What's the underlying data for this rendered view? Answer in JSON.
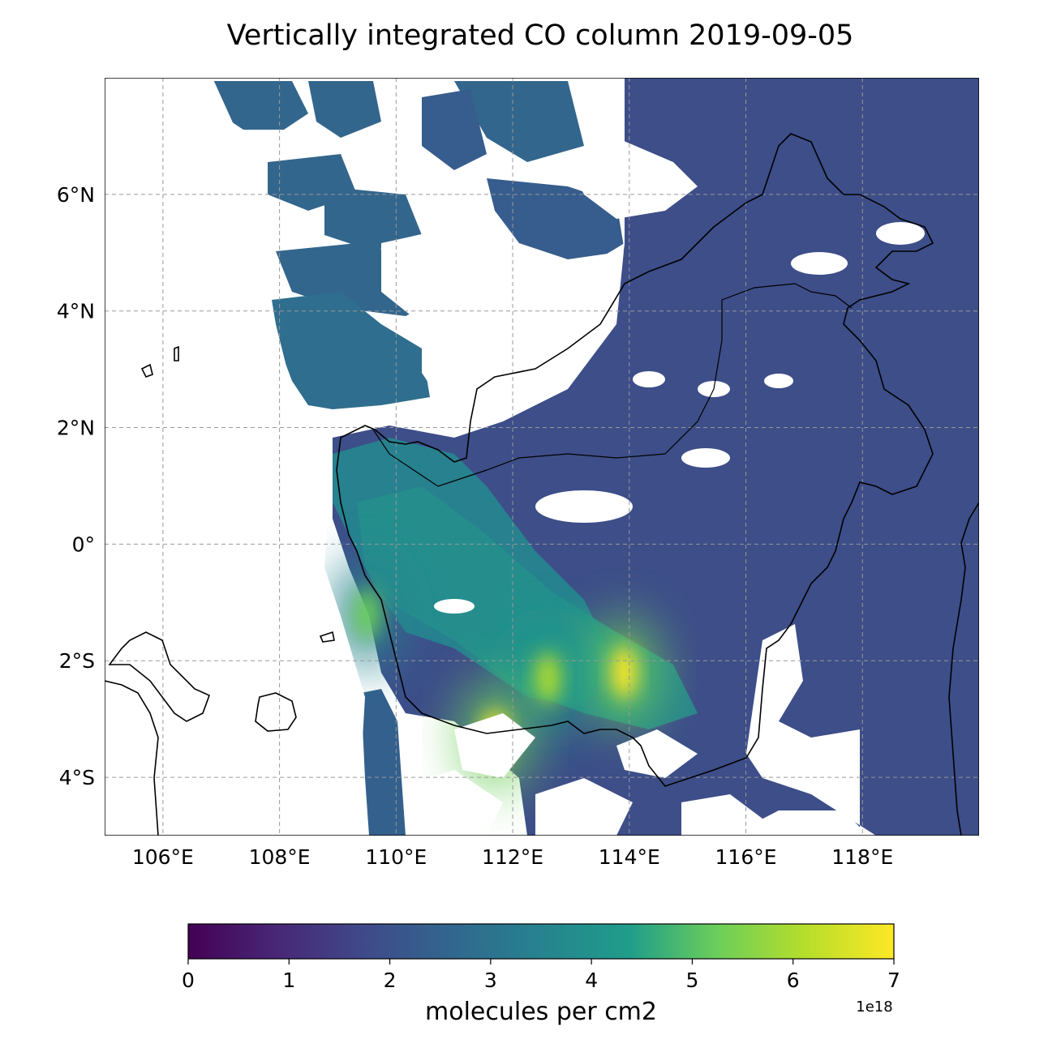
{
  "title": "Vertically integrated CO column 2019-09-05",
  "map": {
    "lon_range": [
      105,
      120
    ],
    "lat_range": [
      -5,
      8
    ],
    "lon_ticks": [
      106,
      108,
      110,
      112,
      114,
      116,
      118
    ],
    "lat_ticks": [
      6,
      4,
      2,
      0,
      -2,
      -4
    ],
    "lon_tick_labels": [
      "106°E",
      "108°E",
      "110°E",
      "112°E",
      "114°E",
      "116°E",
      "118°E"
    ],
    "lat_tick_labels": [
      "6°N",
      "4°N",
      "2°N",
      "0°",
      "2°S",
      "4°S"
    ],
    "gridlines": true,
    "coastline_color": "#000000",
    "hotspots": [
      {
        "lon": 113.9,
        "lat": -2.2,
        "value": 6.8
      },
      {
        "lon": 112.6,
        "lat": -2.3,
        "value": 6.3
      },
      {
        "lon": 111.7,
        "lat": -3.3,
        "value": 6.6
      },
      {
        "lon": 109.5,
        "lat": -1.2,
        "value": 5.2
      }
    ]
  },
  "colorbar": {
    "colormap": "viridis",
    "colors": [
      "#440154",
      "#482777",
      "#3f4a8a",
      "#31678e",
      "#26838f",
      "#1f9d8a",
      "#6cce5a",
      "#b6de2b",
      "#fee825"
    ],
    "min": 0,
    "max": 7,
    "ticks": [
      "0",
      "1",
      "2",
      "3",
      "4",
      "5",
      "6",
      "7"
    ],
    "label": "molecules per cm2",
    "offset_text": "1e18"
  }
}
